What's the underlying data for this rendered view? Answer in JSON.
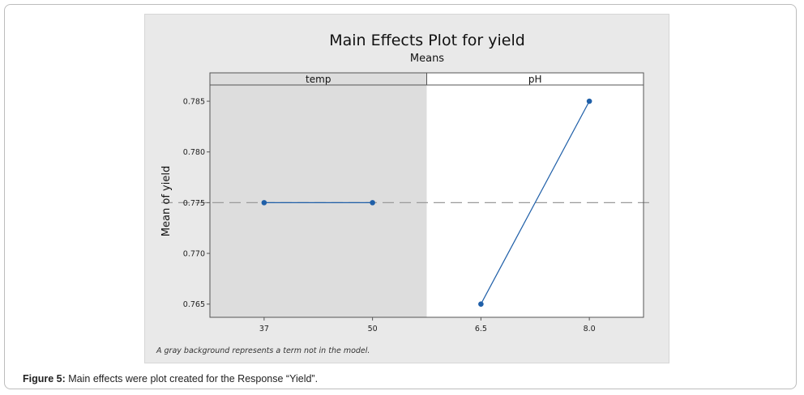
{
  "caption": {
    "label": "Figure 5:",
    "text": " Main effects were plot created for the Response “Yield”."
  },
  "chart_data": {
    "type": "line",
    "title": "Main Effects Plot for yield",
    "subtitle": "Means",
    "ylabel": "Mean of yield",
    "ylim": [
      0.7637,
      0.7866
    ],
    "yticks": [
      0.765,
      0.77,
      0.775,
      0.78,
      0.785
    ],
    "ytick_labels": [
      "0.765",
      "0.770",
      "0.775",
      "0.780",
      "0.785"
    ],
    "reference_line": 0.775,
    "footnote": "A gray background represents a term not in the model.",
    "series_color": "#1f5fa8",
    "panels": [
      {
        "name": "temp",
        "in_model": false,
        "background": "#dddddd",
        "x": [
          "37",
          "50"
        ],
        "y": [
          0.775,
          0.775
        ]
      },
      {
        "name": "pH",
        "in_model": true,
        "background": "#ffffff",
        "x": [
          "6.5",
          "8.0"
        ],
        "y": [
          0.765,
          0.785
        ]
      }
    ]
  }
}
